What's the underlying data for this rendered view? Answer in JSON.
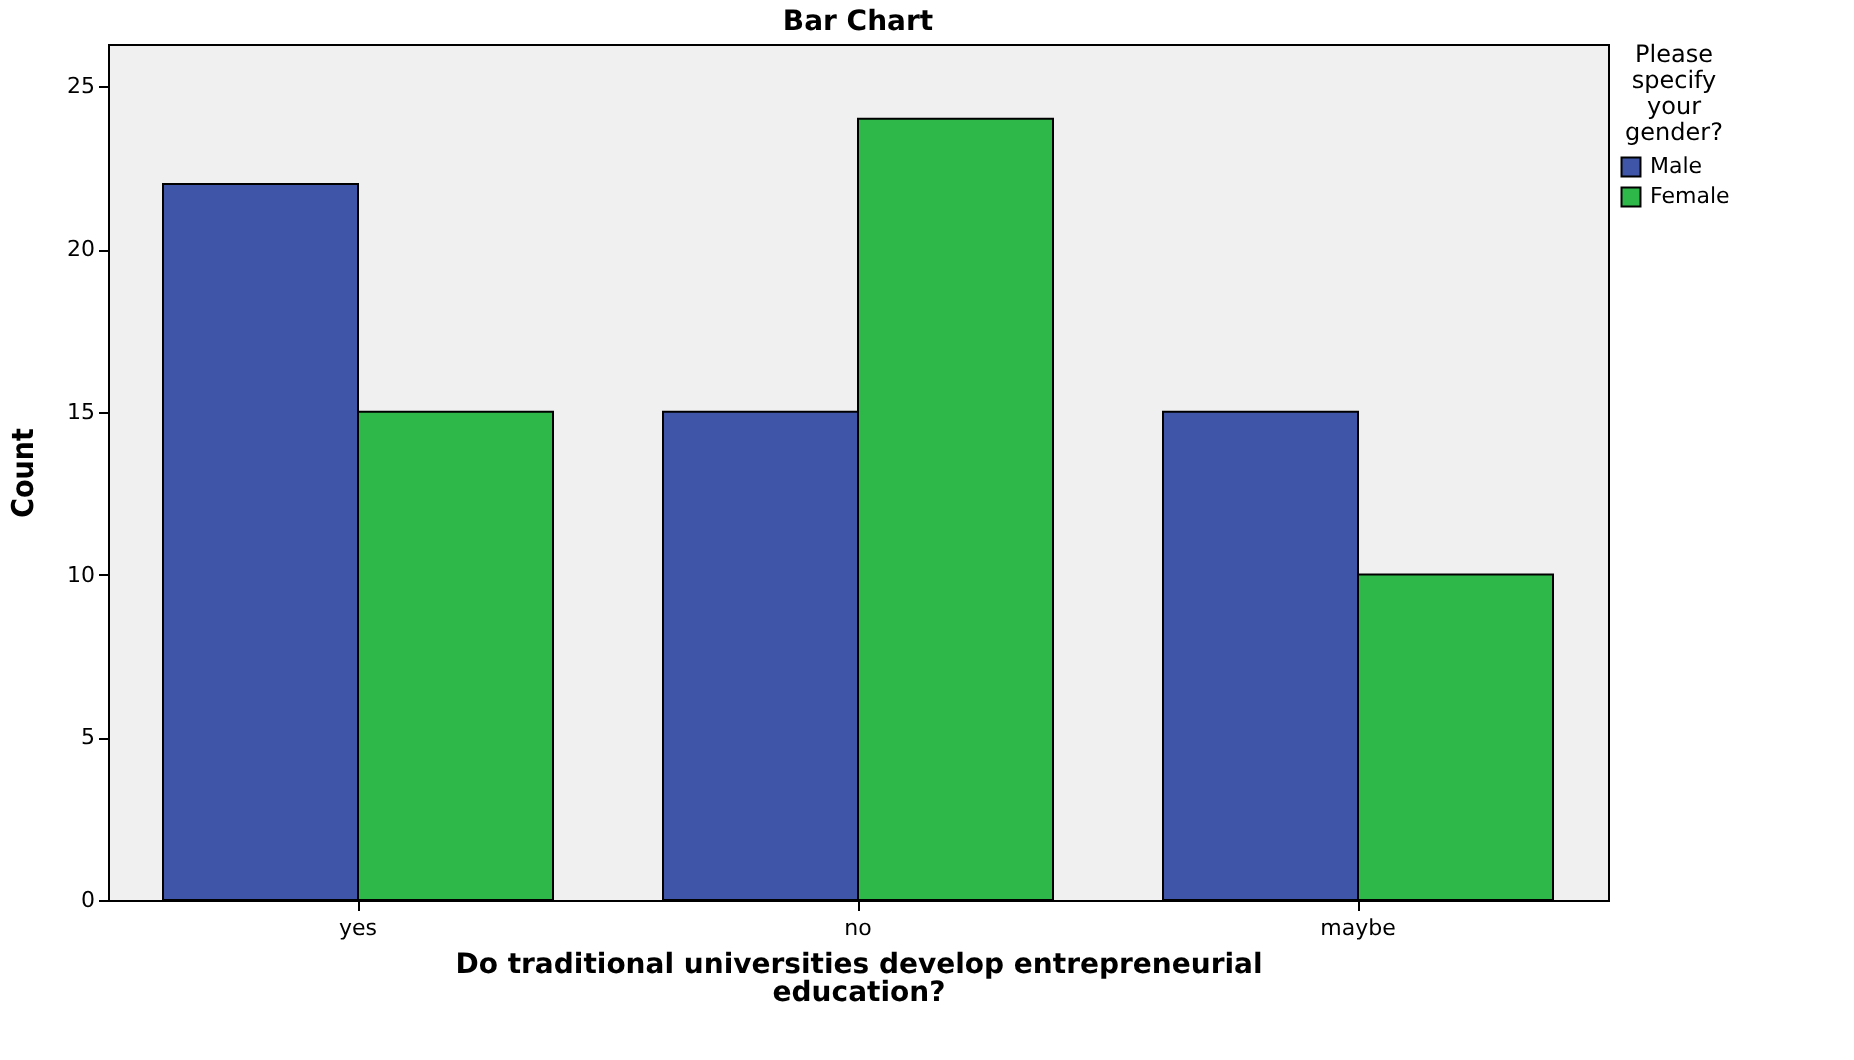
{
  "chart_data": {
    "type": "bar",
    "title": "Bar Chart",
    "xlabel": "Do traditional universities develop entrepreneurial education?",
    "ylabel": "Count",
    "legend_title": "Please specify your gender?",
    "categories": [
      "yes",
      "no",
      "maybe"
    ],
    "series": [
      {
        "name": "Male",
        "color": "#3f56a8",
        "values": [
          22,
          15,
          15
        ]
      },
      {
        "name": "Female",
        "color": "#2eb84a",
        "values": [
          15,
          24,
          10
        ]
      }
    ],
    "ylim": [
      0,
      26.3
    ],
    "yticks": [
      0,
      5,
      10,
      15,
      20,
      25
    ],
    "grid": false,
    "legend": "top right"
  }
}
